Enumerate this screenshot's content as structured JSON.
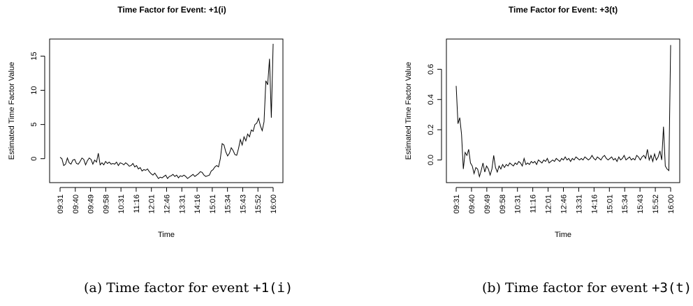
{
  "chart_data": [
    {
      "type": "line",
      "title": "Time Factor for Event: +1(i)",
      "xlabel": "Time",
      "ylabel": "Estimated Time Factor Value",
      "x_ticks": [
        "09:31",
        "09:40",
        "09:49",
        "09:58",
        "10:31",
        "11:16",
        "12:01",
        "12:46",
        "13:31",
        "14:16",
        "15:01",
        "15:34",
        "15:43",
        "15:52",
        "16:00"
      ],
      "y_ticks": [
        0,
        5,
        10,
        15
      ],
      "ylim": [
        -3.5,
        17.5
      ],
      "grid": false,
      "series": [
        {
          "values": [
            0.2,
            0.0,
            -1.0,
            -0.8,
            0.1,
            -0.6,
            -0.8,
            -0.2,
            -0.1,
            -0.7,
            -0.8,
            -0.4,
            0.1,
            -0.1,
            -0.9,
            -0.3,
            0.1,
            -0.1,
            -0.8,
            -0.2,
            -0.5,
            0.8,
            -0.9,
            -0.6,
            -0.9,
            -0.4,
            -0.7,
            -0.5,
            -0.8,
            -0.7,
            -0.8,
            -0.5,
            -1.0,
            -0.6,
            -0.7,
            -0.9,
            -0.6,
            -0.8,
            -1.1,
            -1.0,
            -0.7,
            -1.2,
            -1.0,
            -1.5,
            -1.3,
            -1.8,
            -1.6,
            -1.7,
            -1.5,
            -1.9,
            -2.2,
            -2.4,
            -2.1,
            -2.5,
            -2.9,
            -2.7,
            -2.8,
            -2.6,
            -2.4,
            -2.9,
            -2.6,
            -2.5,
            -2.3,
            -2.6,
            -2.4,
            -2.8,
            -2.5,
            -2.6,
            -2.4,
            -2.6,
            -2.9,
            -2.7,
            -2.5,
            -2.3,
            -2.6,
            -2.4,
            -2.2,
            -1.9,
            -2.0,
            -2.4,
            -2.6,
            -2.5,
            -2.4,
            -1.8,
            -1.6,
            -1.2,
            -1.0,
            -1.2,
            0.0,
            2.2,
            2.0,
            1.0,
            0.4,
            0.8,
            1.6,
            1.2,
            0.6,
            0.5,
            1.5,
            2.8,
            2.0,
            3.2,
            2.6,
            3.6,
            3.2,
            4.2,
            4.0,
            5.0,
            5.2,
            5.9,
            4.8,
            4.1,
            5.4,
            11.4,
            10.8,
            14.6,
            6.0,
            16.8
          ]
        }
      ]
    },
    {
      "type": "line",
      "title": "Time Factor for Event: +3(t)",
      "xlabel": "Time",
      "ylabel": "Estimated Time Factor Value",
      "x_ticks": [
        "09:31",
        "09:40",
        "09:49",
        "09:58",
        "10:31",
        "11:16",
        "12:01",
        "12:46",
        "13:31",
        "14:16",
        "15:01",
        "15:34",
        "15:43",
        "15:52",
        "16:00"
      ],
      "y_ticks": [
        0.0,
        0.2,
        0.4,
        0.6
      ],
      "ylim": [
        -0.15,
        0.8
      ],
      "grid": false,
      "series": [
        {
          "values": [
            0.49,
            0.24,
            0.28,
            0.17,
            -0.06,
            0.05,
            0.03,
            0.07,
            -0.02,
            -0.04,
            -0.09,
            -0.05,
            -0.06,
            -0.11,
            -0.07,
            -0.02,
            -0.08,
            -0.04,
            -0.06,
            -0.1,
            -0.06,
            0.03,
            -0.05,
            -0.08,
            -0.04,
            -0.06,
            -0.03,
            -0.05,
            -0.03,
            -0.04,
            -0.02,
            -0.03,
            -0.04,
            -0.02,
            -0.03,
            -0.01,
            -0.02,
            -0.04,
            0.01,
            -0.03,
            -0.02,
            -0.03,
            -0.01,
            -0.02,
            -0.01,
            -0.03,
            0.0,
            -0.01,
            -0.02,
            0.0,
            -0.01,
            0.01,
            -0.02,
            -0.01,
            0.0,
            -0.01,
            0.01,
            0.0,
            -0.01,
            0.01,
            0.0,
            0.02,
            0.0,
            0.01,
            -0.01,
            0.01,
            0.0,
            0.02,
            0.01,
            0.0,
            0.01,
            0.0,
            0.02,
            0.01,
            0.0,
            0.01,
            0.03,
            0.01,
            0.0,
            0.02,
            0.01,
            0.0,
            0.02,
            0.03,
            0.01,
            0.0,
            0.01,
            0.02,
            0.0,
            0.01,
            -0.01,
            0.02,
            0.0,
            0.01,
            0.03,
            0.0,
            0.01,
            0.02,
            0.0,
            0.01,
            0.0,
            0.03,
            0.02,
            0.0,
            0.02,
            0.03,
            0.01,
            0.07,
            0.0,
            0.03,
            -0.01,
            0.04,
            0.0,
            0.02,
            0.06,
            0.0,
            0.22,
            -0.04,
            -0.06,
            -0.07,
            0.76
          ]
        }
      ]
    }
  ],
  "captions": [
    {
      "prefix": "(a) Time factor for event ",
      "code": "+1(i)"
    },
    {
      "prefix": "(b) Time factor for event ",
      "code": "+3(t)"
    }
  ]
}
